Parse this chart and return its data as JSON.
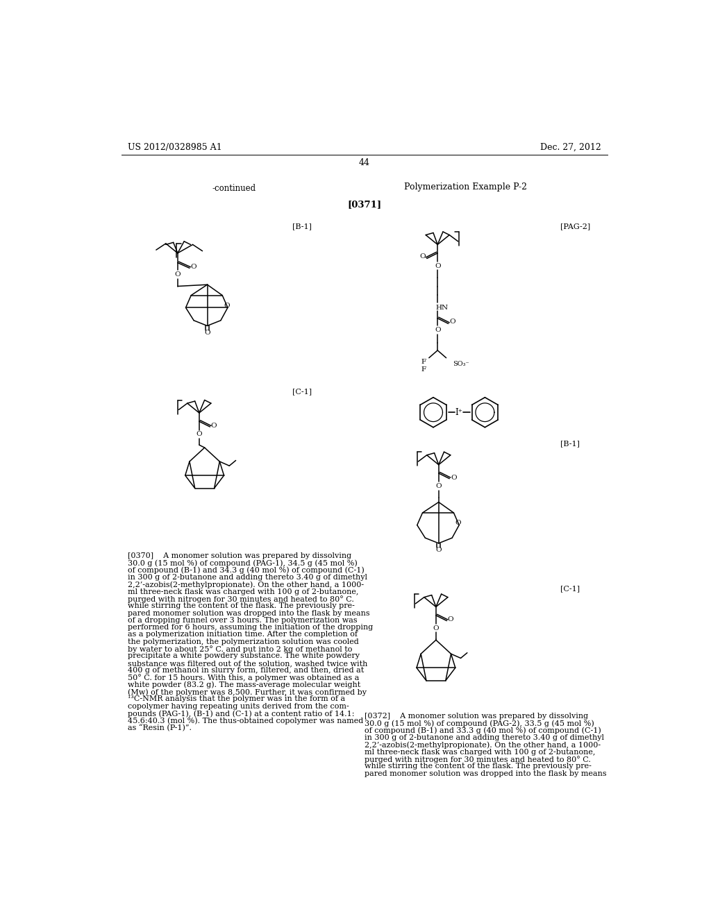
{
  "page_header_left": "US 2012/0328985 A1",
  "page_header_right": "Dec. 27, 2012",
  "page_number": "44",
  "continued_label": "-continued",
  "section_title": "Polymerization Example P-2",
  "paragraph_label": "[0371]",
  "label_B1_left": "[B-1]",
  "label_C1_left": "[C-1]",
  "label_PAG2_right": "[PAG-2]",
  "label_B1_right": "[B-1]",
  "label_C1_right": "[C-1]",
  "background_color": "#ffffff",
  "text_color": "#000000",
  "font_size_body": 8.5,
  "font_size_header": 9.0,
  "font_size_label": 8.0
}
